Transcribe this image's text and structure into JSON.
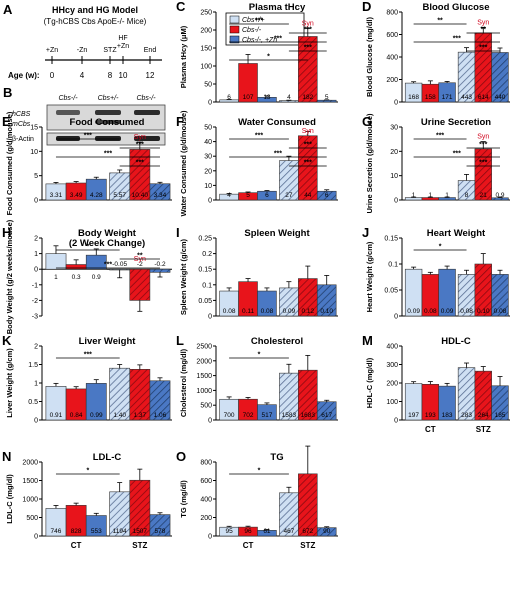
{
  "colors": {
    "wt": "#cfe0f3",
    "ko": "#e8141b",
    "zn": "#4a78c4",
    "syn": "#d0021b",
    "hatch": "#5a6f94"
  },
  "panel_a": {
    "letter": "A",
    "title_line1": "HHcy and HG Model",
    "title_line2": "(Tg-hCBS Cbs ApoE-/- Mice)",
    "age_label": "Age (w):",
    "ages": [
      "0",
      "4",
      "8",
      "10",
      "12"
    ],
    "events_above": [
      "+Zn",
      "-Zn",
      "STZ",
      "HF",
      "End"
    ],
    "event_plus_zn_2": "+Zn"
  },
  "panel_b": {
    "letter": "B",
    "columns": [
      "Cbs-/-",
      "Cbs+/-",
      "Cbs-/-"
    ],
    "rows": [
      "hCBS",
      "mCbs",
      "β-Actin"
    ]
  },
  "legend": {
    "items": [
      "Cbs+/+",
      "Cbs-/-",
      "Cbs-/-, +Zn"
    ]
  },
  "group_labels": [
    "CT",
    "STZ"
  ],
  "syn_label": "Syn",
  "chart_data": [
    {
      "letter": "C",
      "type": "bar",
      "title": "Plasma tHcy",
      "ylabel": "Plasma tHcy (μM)",
      "ylim": [
        0,
        250
      ],
      "yticks": [
        0,
        50,
        100,
        150,
        200,
        250
      ],
      "categories": [
        "CT",
        "STZ"
      ],
      "series": [
        {
          "name": "Cbs+/+",
          "values": [
            6,
            4
          ]
        },
        {
          "name": "Cbs-/-",
          "values": [
            107,
            182
          ]
        },
        {
          "name": "Cbs-/-, +Zn",
          "values": [
            13,
            5
          ]
        }
      ],
      "labels": [
        "6",
        "107",
        "13",
        "4",
        "182",
        "5"
      ],
      "errors": [
        1,
        25,
        4,
        1,
        22,
        1
      ],
      "syn": true,
      "sig": [
        "***",
        "***",
        "***",
        "***",
        "*"
      ]
    },
    {
      "letter": "D",
      "type": "bar",
      "title": "Blood Glucose",
      "ylabel": "Blood Glucose (mg/dl)",
      "ylim": [
        0,
        800
      ],
      "yticks": [
        0,
        200,
        400,
        600,
        800
      ],
      "categories": [
        "CT",
        "STZ"
      ],
      "series": [
        {
          "name": "Cbs+/+",
          "values": [
            168,
            443
          ]
        },
        {
          "name": "Cbs-/-",
          "values": [
            158,
            614
          ]
        },
        {
          "name": "Cbs-/-, +Zn",
          "values": [
            171,
            440
          ]
        }
      ],
      "labels": [
        "168",
        "158",
        "171",
        "443",
        "614",
        "440"
      ],
      "errors": [
        12,
        30,
        12,
        40,
        50,
        40
      ],
      "syn": true,
      "sig": [
        "**",
        "**",
        "***",
        "***"
      ]
    },
    {
      "letter": "E",
      "type": "bar",
      "title": "Food Consumed",
      "ylabel": "Food Consumed (g/d/mouse)",
      "ylim": [
        0,
        15
      ],
      "yticks": [
        0,
        5,
        10,
        15
      ],
      "categories": [
        "CT",
        "STZ"
      ],
      "series": [
        {
          "name": "Cbs+/+",
          "values": [
            3.31,
            5.57
          ]
        },
        {
          "name": "Cbs-/-",
          "values": [
            3.49,
            10.4
          ]
        },
        {
          "name": "Cbs-/-, +Zn",
          "values": [
            4.28,
            3.34
          ]
        }
      ],
      "labels": [
        "3.31",
        "3.49",
        "4.28",
        "5.57",
        "10.40",
        "3.34"
      ],
      "errors": [
        0.3,
        0.3,
        0.4,
        0.6,
        1.5,
        0.3
      ],
      "syn": true,
      "sig": [
        "***",
        "***",
        "***",
        "***"
      ]
    },
    {
      "letter": "F",
      "type": "bar",
      "title": "Water Consumed",
      "ylabel": "Water Consumed (g/d/mouse)",
      "ylim": [
        0,
        50
      ],
      "yticks": [
        0,
        10,
        20,
        30,
        40,
        50
      ],
      "categories": [
        "CT",
        "STZ"
      ],
      "series": [
        {
          "name": "Cbs+/+",
          "values": [
            4,
            27
          ]
        },
        {
          "name": "Cbs-/-",
          "values": [
            5,
            44
          ]
        },
        {
          "name": "Cbs-/-, +Zn",
          "values": [
            6,
            6
          ]
        }
      ],
      "labels": [
        "4",
        "5",
        "6",
        "27",
        "44",
        "6"
      ],
      "errors": [
        0.5,
        0.5,
        0.5,
        3,
        3,
        1
      ],
      "syn": true,
      "sig": [
        "***",
        "***",
        "***",
        "***"
      ]
    },
    {
      "letter": "G",
      "type": "bar",
      "title": "Urine Secretion",
      "ylabel": "Urine Secretion (g/d/mouse)",
      "ylim": [
        0,
        30
      ],
      "yticks": [
        0,
        10,
        20,
        30
      ],
      "categories": [
        "CT",
        "STZ"
      ],
      "series": [
        {
          "name": "Cbs+/+",
          "values": [
            1,
            8
          ]
        },
        {
          "name": "Cbs-/-",
          "values": [
            1,
            21
          ]
        },
        {
          "name": "Cbs-/-, +Zn",
          "values": [
            1,
            0.9
          ]
        }
      ],
      "labels": [
        "1",
        "1",
        "1",
        "8",
        "21",
        "0.9"
      ],
      "errors": [
        0.2,
        0.2,
        0.2,
        2.5,
        3,
        0.3
      ],
      "syn": true,
      "sig": [
        "***",
        "***",
        "***",
        "***"
      ]
    },
    {
      "letter": "H",
      "type": "bar",
      "title": "Body Weight (2 Week Change)",
      "ylabel": "Body Weight (g/2 weeks/mouse)",
      "ylim": [
        -3,
        2
      ],
      "yticks": [
        -3,
        -2,
        -1,
        0,
        1,
        2
      ],
      "categories": [
        "CT",
        "STZ"
      ],
      "series": [
        {
          "name": "Cbs+/+",
          "values": [
            1,
            -0.05
          ]
        },
        {
          "name": "Cbs-/-",
          "values": [
            0.3,
            -2
          ]
        },
        {
          "name": "Cbs-/-, +Zn",
          "values": [
            0.9,
            -0.2
          ]
        }
      ],
      "labels": [
        "1",
        "0.3",
        "0.9",
        "-0.05",
        "-2",
        "-0.2"
      ],
      "errors": [
        0.5,
        0.3,
        0.4,
        0.5,
        0.7,
        0.3
      ],
      "syn": true,
      "sig": [
        "*",
        "**",
        "***"
      ]
    },
    {
      "letter": "I",
      "type": "bar",
      "title": "Spleen Weight",
      "ylabel": "Spleen Weight (g/cm)",
      "ylim": [
        0,
        0.25
      ],
      "yticks": [
        0,
        0.05,
        0.1,
        0.15,
        0.2,
        0.25
      ],
      "categories": [
        "CT",
        "STZ"
      ],
      "series": [
        {
          "name": "Cbs+/+",
          "values": [
            0.08,
            0.09
          ]
        },
        {
          "name": "Cbs-/-",
          "values": [
            0.11,
            0.12
          ]
        },
        {
          "name": "Cbs-/-, +Zn",
          "values": [
            0.08,
            0.1
          ]
        }
      ],
      "labels": [
        "0.08",
        "0.11",
        "0.08",
        "0.09",
        "0.12",
        "0.10"
      ],
      "errors": [
        0.01,
        0.01,
        0.01,
        0.02,
        0.04,
        0.03
      ],
      "syn": false,
      "sig": []
    },
    {
      "letter": "J",
      "type": "bar",
      "title": "Heart Weight",
      "ylabel": "Heart Weight (g/cm)",
      "ylim": [
        0,
        0.15
      ],
      "yticks": [
        0,
        0.05,
        0.1,
        0.15
      ],
      "categories": [
        "CT",
        "STZ"
      ],
      "series": [
        {
          "name": "Cbs+/+",
          "values": [
            0.09,
            0.08
          ]
        },
        {
          "name": "Cbs-/-",
          "values": [
            0.08,
            0.1
          ]
        },
        {
          "name": "Cbs-/-, +Zn",
          "values": [
            0.09,
            0.08
          ]
        }
      ],
      "labels": [
        "0.09",
        "0.08",
        "0.09",
        "0.08",
        "0.10",
        "0.08"
      ],
      "errors": [
        0.004,
        0.004,
        0.006,
        0.008,
        0.02,
        0.008
      ],
      "syn": false,
      "sig": [
        "*"
      ]
    },
    {
      "letter": "K",
      "type": "bar",
      "title": "Liver Weight",
      "ylabel": "Liver Weight (g/cm)",
      "ylim": [
        0,
        2
      ],
      "yticks": [
        0,
        0.5,
        1,
        1.5,
        2
      ],
      "categories": [
        "CT",
        "STZ"
      ],
      "series": [
        {
          "name": "Cbs+/+",
          "values": [
            0.91,
            1.4
          ]
        },
        {
          "name": "Cbs-/-",
          "values": [
            0.84,
            1.37
          ]
        },
        {
          "name": "Cbs-/-, +Zn",
          "values": [
            0.99,
            1.06
          ]
        }
      ],
      "labels": [
        "0.91",
        "0.84",
        "0.99",
        "1.40",
        "1.37",
        "1.06"
      ],
      "errors": [
        0.08,
        0.06,
        0.1,
        0.1,
        0.12,
        0.08
      ],
      "syn": false,
      "sig": [
        "***"
      ]
    },
    {
      "letter": "L",
      "type": "bar",
      "title": "Cholesterol",
      "ylabel": "Cholesterol (mg/dl)",
      "ylim": [
        0,
        2500
      ],
      "yticks": [
        0,
        500,
        1000,
        1500,
        2000,
        2500
      ],
      "categories": [
        "CT",
        "STZ"
      ],
      "series": [
        {
          "name": "Cbs+/+",
          "values": [
            700,
            1583
          ]
        },
        {
          "name": "Cbs-/-",
          "values": [
            702,
            1683
          ]
        },
        {
          "name": "Cbs-/-, +Zn",
          "values": [
            517,
            617
          ]
        }
      ],
      "labels": [
        "700",
        "702",
        "517",
        "1583",
        "1683",
        "617"
      ],
      "errors": [
        80,
        60,
        60,
        300,
        500,
        50
      ],
      "syn": false,
      "sig": [
        "*"
      ]
    },
    {
      "letter": "M",
      "type": "bar",
      "title": "HDL-C",
      "ylabel": "HDL-C (mg/dl)",
      "ylim": [
        0,
        400
      ],
      "yticks": [
        0,
        100,
        200,
        300,
        400
      ],
      "categories": [
        "CT",
        "STZ"
      ],
      "series": [
        {
          "name": "Cbs+/+",
          "values": [
            197,
            283
          ]
        },
        {
          "name": "Cbs-/-",
          "values": [
            193,
            264
          ]
        },
        {
          "name": "Cbs-/-, +Zn",
          "values": [
            183,
            185
          ]
        }
      ],
      "labels": [
        "197",
        "193",
        "183",
        "283",
        "264",
        "185"
      ],
      "errors": [
        10,
        15,
        15,
        25,
        25,
        50
      ],
      "syn": false,
      "sig": []
    },
    {
      "letter": "N",
      "type": "bar",
      "title": "LDL-C",
      "ylabel": "LDL-C (mg/dl)",
      "ylim": [
        0,
        2000
      ],
      "yticks": [
        0,
        500,
        1000,
        1500,
        2000
      ],
      "categories": [
        "CT",
        "STZ"
      ],
      "series": [
        {
          "name": "Cbs+/+",
          "values": [
            746,
            1194
          ]
        },
        {
          "name": "Cbs-/-",
          "values": [
            828,
            1507
          ]
        },
        {
          "name": "Cbs-/-, +Zn",
          "values": [
            553,
            578
          ]
        }
      ],
      "labels": [
        "746",
        "828",
        "553",
        "1194",
        "1507",
        "578"
      ],
      "errors": [
        80,
        60,
        60,
        250,
        300,
        50
      ],
      "syn": false,
      "sig": [
        "*"
      ]
    },
    {
      "letter": "O",
      "type": "bar",
      "title": "TG",
      "ylabel": "TG (mg/dl)",
      "ylim": [
        0,
        800
      ],
      "yticks": [
        0,
        200,
        400,
        600,
        800
      ],
      "categories": [
        "CT",
        "STZ"
      ],
      "series": [
        {
          "name": "Cbs+/+",
          "values": [
            95,
            467
          ]
        },
        {
          "name": "Cbs-/-",
          "values": [
            96,
            672
          ]
        },
        {
          "name": "Cbs-/-, +Zn",
          "values": [
            61,
            90
          ]
        }
      ],
      "labels": [
        "95",
        "96",
        "61",
        "467",
        "672",
        "90"
      ],
      "errors": [
        10,
        10,
        8,
        60,
        300,
        10
      ],
      "syn": false,
      "sig": [
        "*"
      ]
    }
  ]
}
